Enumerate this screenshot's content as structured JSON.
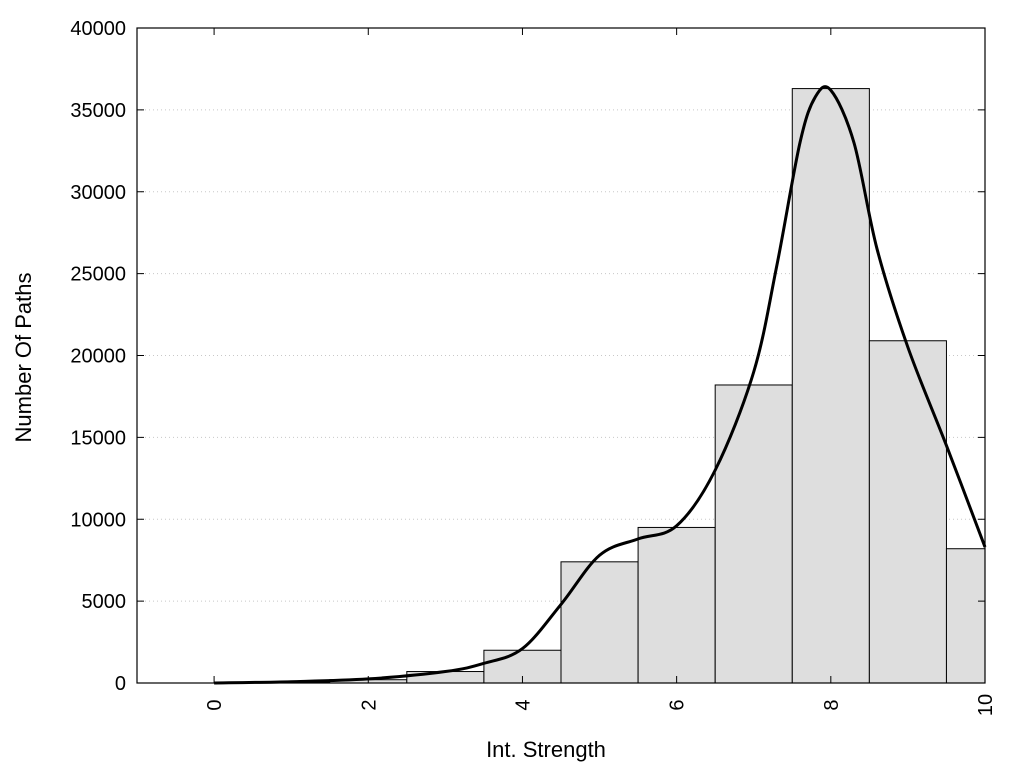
{
  "chart_data": {
    "type": "bar",
    "xlabel": "Int. Strength",
    "ylabel": "Number Of Paths",
    "xlim": [
      -1,
      10
    ],
    "ylim": [
      0,
      40000
    ],
    "x_ticks": [
      "0",
      "2",
      "4",
      "6",
      "8",
      "10"
    ],
    "y_ticks": [
      "0",
      "5000",
      "10000",
      "15000",
      "20000",
      "25000",
      "30000",
      "35000",
      "40000"
    ],
    "grid": true,
    "bar_fill": "#dedede",
    "bars": [
      {
        "x": 0,
        "value": 0
      },
      {
        "x": 1,
        "value": 50
      },
      {
        "x": 2,
        "value": 200
      },
      {
        "x": 3,
        "value": 700
      },
      {
        "x": 4,
        "value": 2000
      },
      {
        "x": 5,
        "value": 7400
      },
      {
        "x": 6,
        "value": 9500
      },
      {
        "x": 7,
        "value": 18200
      },
      {
        "x": 8,
        "value": 36300
      },
      {
        "x": 9,
        "value": 20900
      },
      {
        "x": 9.75,
        "value": 8200
      }
    ],
    "curve": {
      "x": [
        0,
        1,
        2,
        3,
        3.5,
        4,
        4.5,
        5,
        5.5,
        6,
        6.5,
        7,
        7.3,
        7.6,
        7.8,
        8,
        8.3,
        8.6,
        9,
        9.5,
        10
      ],
      "y": [
        0,
        80,
        250,
        700,
        1200,
        2100,
        4800,
        7800,
        8800,
        9600,
        13000,
        19000,
        25500,
        33000,
        35800,
        36200,
        33000,
        26500,
        20500,
        14500,
        8300
      ]
    }
  }
}
